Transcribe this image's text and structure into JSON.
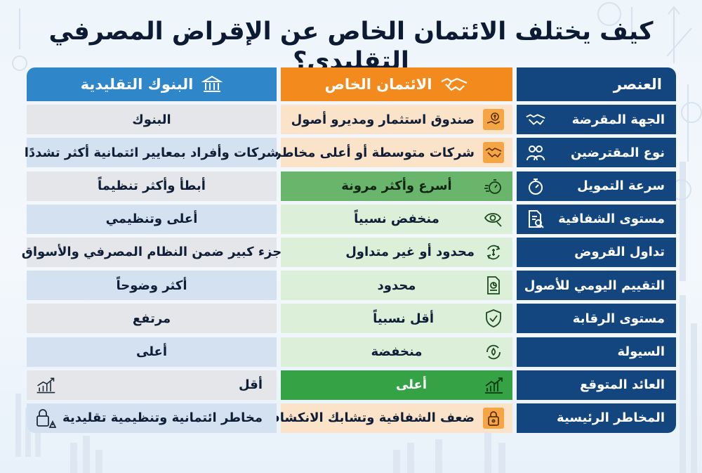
{
  "title": "كيف يختلف الائتمان الخاص عن الإقراض المصرفي التقليدي؟",
  "headers": {
    "element": "العنصر",
    "private_credit": "الائتمان الخاص",
    "banks": "البنوك التقليدية"
  },
  "rows": [
    {
      "label": "الجهة المقرضة",
      "icon": "handshake-icon",
      "pc_icon": "money-hand-icon",
      "private_credit": "صندوق استثمار ومديرو أصول",
      "banks": "البنوك"
    },
    {
      "label": "نوع المقترضين",
      "icon": "people-icon",
      "pc_icon": "handshake-icon",
      "private_credit": "شركات متوسطة أو أعلى مخاطرة",
      "banks": "شركات وأفراد بمعايير ائتمانية أكثر تشددًا"
    },
    {
      "label": "سرعة التمويل",
      "icon": "stopwatch-icon",
      "pc_icon": "fast-stopwatch-icon",
      "private_credit": "أسرع وأكثر مرونة",
      "banks": "أبطأ وأكثر تنظيماً"
    },
    {
      "label": "مستوى الشفافية",
      "icon": "document-search-icon",
      "pc_icon": "eye-search-icon",
      "private_credit": "منخفض نسبياً",
      "banks": "أعلى وتنظيمي"
    },
    {
      "label": "تداول القروض",
      "icon": "exchange-icon",
      "pc_icon": "money-cycle-icon",
      "private_credit": "محدود أو غير متداول",
      "banks": "جزء كبير ضمن النظام المصرفي والأسواق"
    },
    {
      "label": "التقييم اليومي للأصول",
      "icon": "calendar-chart-icon",
      "pc_icon": "report-chart-icon",
      "private_credit": "محدود",
      "banks": "أكثر وضوحاً"
    },
    {
      "label": "مستوى الرقابة",
      "icon": "shield-check-icon",
      "pc_icon": "shield-check-icon",
      "private_credit": "أقل نسبياً",
      "banks": "مرتفع"
    },
    {
      "label": "السيولة",
      "icon": "liquidity-icon",
      "pc_icon": "liquidity-cycle-icon",
      "private_credit": "منخفضة",
      "banks": "أعلى"
    },
    {
      "label": "العائد المتوقع",
      "icon": "growth-chart-icon",
      "pc_icon": "growth-chart-icon",
      "bank_icon": "growth-chart-icon",
      "private_credit": "أعلى",
      "banks": "أقل"
    },
    {
      "label": "المخاطر الرئيسية",
      "icon": "lock-icon",
      "pc_icon": "lock-icon",
      "bank_icon": "lock-warning-icon",
      "private_credit": "ضعف الشفافية وتشابك الانكشافات",
      "banks": "مخاطر ائتمانية وتنظيمية تقليدية"
    }
  ],
  "colors": {
    "navy": "#13457f",
    "orange": "#f28a1e",
    "blue": "#2f86c9",
    "light_orange": "#fbe3c9",
    "light_green": "#dcefd9",
    "medium_green": "#69b56b",
    "strong_green": "#36a246",
    "gray": "#e5e6e9",
    "light_blue": "#d4e1f0"
  }
}
